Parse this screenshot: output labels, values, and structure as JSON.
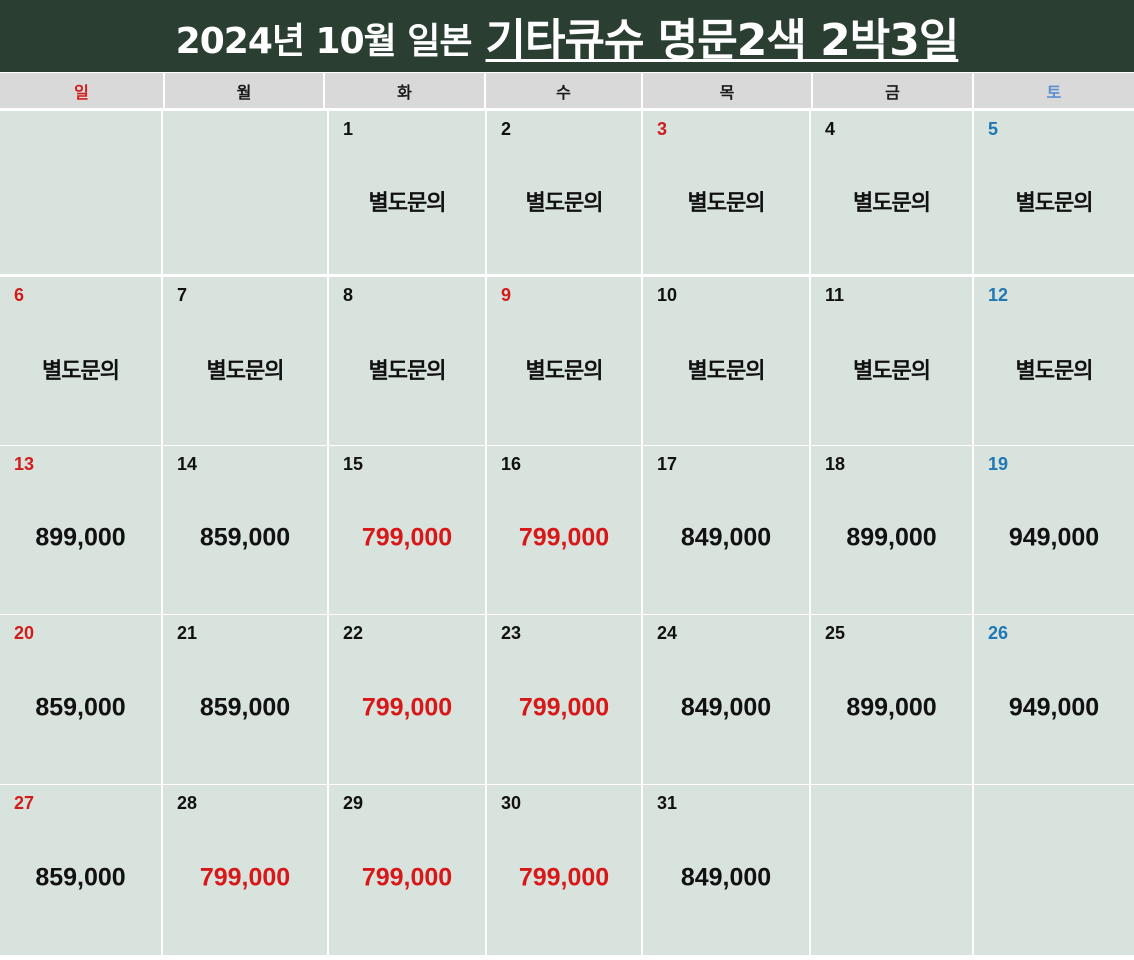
{
  "header": {
    "title_plain": "2024년 10월 일본",
    "title_underlined": "기타큐슈 명문2색 2박3일"
  },
  "colors": {
    "title_band": "#2a3f32",
    "weekday_bg": "#d9d9d9",
    "cell_bg": "#d9e3de",
    "sunday": "#d01c1c",
    "saturday": "#1f78b4",
    "sale_price": "#d81818"
  },
  "weekdays": [
    {
      "label": "일",
      "type": "sun"
    },
    {
      "label": "월",
      "type": "weekday"
    },
    {
      "label": "화",
      "type": "weekday"
    },
    {
      "label": "수",
      "type": "weekday"
    },
    {
      "label": "목",
      "type": "weekday"
    },
    {
      "label": "금",
      "type": "weekday"
    },
    {
      "label": "토",
      "type": "sat"
    }
  ],
  "calendar": {
    "weeks": [
      [
        {
          "day": "",
          "text": "",
          "day_type": "",
          "text_type": ""
        },
        {
          "day": "",
          "text": "",
          "day_type": "",
          "text_type": ""
        },
        {
          "day": "1",
          "text": "별도문의",
          "day_type": "weekday",
          "text_type": "inquiry"
        },
        {
          "day": "2",
          "text": "별도문의",
          "day_type": "weekday",
          "text_type": "inquiry"
        },
        {
          "day": "3",
          "text": "별도문의",
          "day_type": "sun",
          "text_type": "inquiry"
        },
        {
          "day": "4",
          "text": "별도문의",
          "day_type": "weekday",
          "text_type": "inquiry"
        },
        {
          "day": "5",
          "text": "별도문의",
          "day_type": "sat",
          "text_type": "inquiry"
        }
      ],
      [
        {
          "day": "6",
          "text": "별도문의",
          "day_type": "sun",
          "text_type": "inquiry"
        },
        {
          "day": "7",
          "text": "별도문의",
          "day_type": "weekday",
          "text_type": "inquiry"
        },
        {
          "day": "8",
          "text": "별도문의",
          "day_type": "weekday",
          "text_type": "inquiry"
        },
        {
          "day": "9",
          "text": "별도문의",
          "day_type": "sun",
          "text_type": "inquiry"
        },
        {
          "day": "10",
          "text": "별도문의",
          "day_type": "weekday",
          "text_type": "inquiry"
        },
        {
          "day": "11",
          "text": "별도문의",
          "day_type": "weekday",
          "text_type": "inquiry"
        },
        {
          "day": "12",
          "text": "별도문의",
          "day_type": "sat",
          "text_type": "inquiry"
        }
      ],
      [
        {
          "day": "13",
          "text": "899,000",
          "day_type": "sun",
          "text_type": "price"
        },
        {
          "day": "14",
          "text": "859,000",
          "day_type": "weekday",
          "text_type": "price"
        },
        {
          "day": "15",
          "text": "799,000",
          "day_type": "weekday",
          "text_type": "sale"
        },
        {
          "day": "16",
          "text": "799,000",
          "day_type": "weekday",
          "text_type": "sale"
        },
        {
          "day": "17",
          "text": "849,000",
          "day_type": "weekday",
          "text_type": "price"
        },
        {
          "day": "18",
          "text": "899,000",
          "day_type": "weekday",
          "text_type": "price"
        },
        {
          "day": "19",
          "text": "949,000",
          "day_type": "sat",
          "text_type": "price"
        }
      ],
      [
        {
          "day": "20",
          "text": "859,000",
          "day_type": "sun",
          "text_type": "price"
        },
        {
          "day": "21",
          "text": "859,000",
          "day_type": "weekday",
          "text_type": "price"
        },
        {
          "day": "22",
          "text": "799,000",
          "day_type": "weekday",
          "text_type": "sale"
        },
        {
          "day": "23",
          "text": "799,000",
          "day_type": "weekday",
          "text_type": "sale"
        },
        {
          "day": "24",
          "text": "849,000",
          "day_type": "weekday",
          "text_type": "price"
        },
        {
          "day": "25",
          "text": "899,000",
          "day_type": "weekday",
          "text_type": "price"
        },
        {
          "day": "26",
          "text": "949,000",
          "day_type": "sat",
          "text_type": "price"
        }
      ],
      [
        {
          "day": "27",
          "text": "859,000",
          "day_type": "sun",
          "text_type": "price"
        },
        {
          "day": "28",
          "text": "799,000",
          "day_type": "weekday",
          "text_type": "sale"
        },
        {
          "day": "29",
          "text": "799,000",
          "day_type": "weekday",
          "text_type": "sale"
        },
        {
          "day": "30",
          "text": "799,000",
          "day_type": "weekday",
          "text_type": "sale"
        },
        {
          "day": "31",
          "text": "849,000",
          "day_type": "weekday",
          "text_type": "price"
        },
        {
          "day": "",
          "text": "",
          "day_type": "",
          "text_type": ""
        },
        {
          "day": "",
          "text": "",
          "day_type": "",
          "text_type": ""
        }
      ]
    ]
  }
}
